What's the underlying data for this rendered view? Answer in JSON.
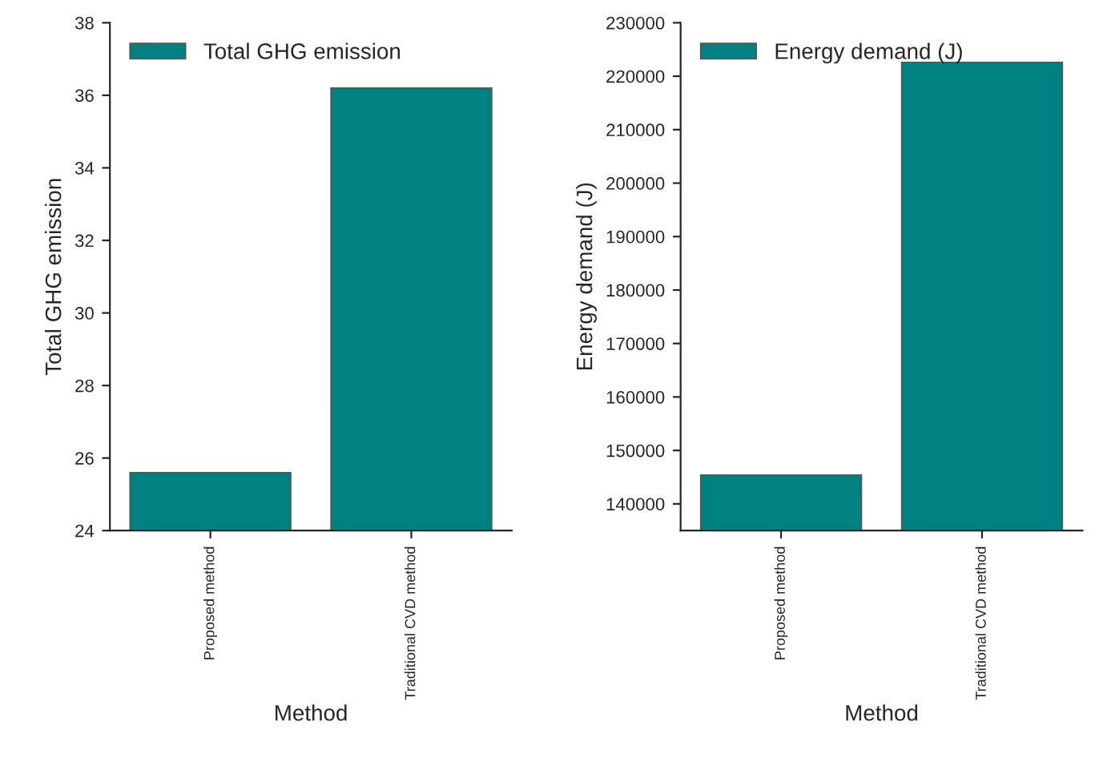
{
  "chart_data": [
    {
      "type": "bar",
      "xlabel": "Method",
      "ylabel": "Total GHG emission",
      "categories": [
        "Proposed method",
        "Traditional CVD method"
      ],
      "series": [
        {
          "name": "Total GHG emission",
          "color": "#008080",
          "values": [
            25.6,
            36.2
          ]
        }
      ],
      "ylim": [
        24,
        38
      ],
      "yticks": [
        24,
        26,
        28,
        30,
        32,
        34,
        36,
        38
      ],
      "grid": false,
      "legend": "top left"
    },
    {
      "type": "bar",
      "xlabel": "Method",
      "ylabel": "Energy demand (J)",
      "categories": [
        "Proposed method",
        "Traditional CVD method"
      ],
      "series": [
        {
          "name": "Energy demand (J)",
          "color": "#008080",
          "values": [
            145400,
            222600
          ]
        }
      ],
      "ylim": [
        135000,
        230000
      ],
      "yticks": [
        140000,
        150000,
        160000,
        170000,
        180000,
        190000,
        200000,
        210000,
        220000,
        230000
      ],
      "grid": false,
      "legend": "top left"
    }
  ]
}
